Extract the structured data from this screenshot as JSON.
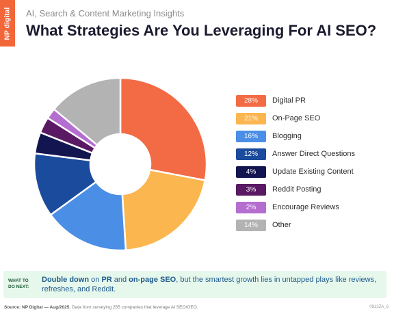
{
  "brand": {
    "tab_text": "NP digital"
  },
  "header": {
    "subtitle": "AI, Search & Content Marketing Insights",
    "title": "What Strategies Are You Leveraging For AI SEO?"
  },
  "chart_data": {
    "type": "pie",
    "donut": true,
    "categories": [
      "Digital PR",
      "On-Page SEO",
      "Blogging",
      "Answer Direct Questions",
      "Update Existing Content",
      "Reddit Posting",
      "Encourage Reviews",
      "Other"
    ],
    "values": [
      28,
      21,
      16,
      12,
      4,
      3,
      2,
      14
    ],
    "labels": [
      "28%",
      "21%",
      "16%",
      "12%",
      "4%",
      "3%",
      "2%",
      "14%"
    ],
    "colors": [
      "#f26b45",
      "#fbb64f",
      "#4a8ee6",
      "#1b4b9c",
      "#12154f",
      "#5a1a63",
      "#b46ed0",
      "#b3b3b3"
    ],
    "legend_position": "right"
  },
  "callout": {
    "tag_line1": "WHAT TO",
    "tag_line2": "DO NEXT:",
    "part1": "Double down",
    "part2": " on ",
    "part3": "PR",
    "part4": " and ",
    "part5": "on-page SEO",
    "part6": ", but the smartest growth lies in untapped plays like reviews, refreshes, and Reddit."
  },
  "footer": {
    "source_bold": "Source: NP Digital — Aug/2025.",
    "source_rest": " Data from surveying 255 companies that leverage AI SEO/GEO.",
    "code": "0813ZA_6"
  }
}
